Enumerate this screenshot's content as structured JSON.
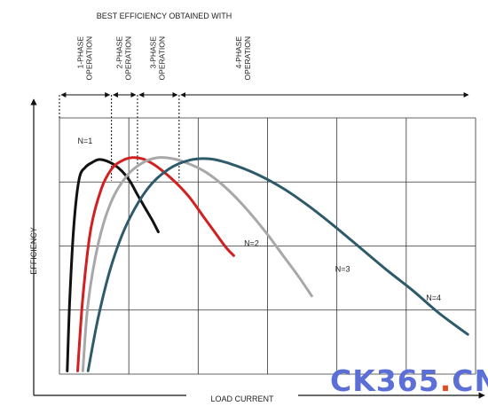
{
  "chart_data": {
    "type": "line",
    "title": "BEST EFFICIENCY OBTAINED WITH",
    "xlabel": "LOAD CURRENT",
    "ylabel": "EFFICIENCY",
    "grid": true,
    "xlim": [
      0,
      8
    ],
    "ylim": [
      0,
      4
    ],
    "regions": [
      {
        "label": "1-PHASE OPERATION",
        "x_start": 0,
        "x_end": 1.0
      },
      {
        "label": "2-PHASE OPERATION",
        "x_start": 1.0,
        "x_end": 1.5
      },
      {
        "label": "3-PHASE OPERATION",
        "x_start": 1.5,
        "x_end": 2.3
      },
      {
        "label": "4-PHASE OPERATION",
        "x_start": 2.3,
        "x_end": 8
      }
    ],
    "series": [
      {
        "name": "N=1",
        "color": "#111111",
        "x": [
          0.15,
          0.2,
          0.28,
          0.38,
          0.5,
          0.62,
          0.75,
          0.9,
          1.05,
          1.2,
          1.35,
          1.5,
          1.6,
          1.7,
          1.8,
          1.9
        ],
        "y": [
          0.05,
          1.2,
          2.35,
          3.05,
          3.23,
          3.3,
          3.35,
          3.33,
          3.27,
          3.17,
          3.02,
          2.8,
          2.66,
          2.52,
          2.38,
          2.22
        ]
      },
      {
        "name": "N=2",
        "color": "#d21f1f",
        "x": [
          0.35,
          0.45,
          0.6,
          0.8,
          1.0,
          1.2,
          1.4,
          1.6,
          1.8,
          2.0,
          2.25,
          2.5,
          2.75,
          3.0,
          3.2,
          3.35
        ],
        "y": [
          0.05,
          1.2,
          2.25,
          2.88,
          3.2,
          3.33,
          3.38,
          3.36,
          3.28,
          3.16,
          2.98,
          2.76,
          2.48,
          2.2,
          1.98,
          1.85
        ]
      },
      {
        "name": "N=3",
        "color": "#a8a8a8",
        "x": [
          0.45,
          0.55,
          0.75,
          1.0,
          1.3,
          1.6,
          1.9,
          2.2,
          2.5,
          2.8,
          3.1,
          3.4,
          3.7,
          4.0,
          4.3,
          4.6,
          4.85
        ],
        "y": [
          0.05,
          1.1,
          2.05,
          2.7,
          3.1,
          3.3,
          3.38,
          3.36,
          3.28,
          3.16,
          2.98,
          2.75,
          2.48,
          2.18,
          1.85,
          1.52,
          1.22
        ]
      },
      {
        "name": "N=4",
        "color": "#2e5a6a",
        "x": [
          0.55,
          0.75,
          1.0,
          1.3,
          1.7,
          2.1,
          2.5,
          2.9,
          3.3,
          3.8,
          4.3,
          4.8,
          5.3,
          5.8,
          6.3,
          6.8,
          7.3,
          7.85
        ],
        "y": [
          0.05,
          0.9,
          1.7,
          2.35,
          2.9,
          3.2,
          3.34,
          3.36,
          3.28,
          3.12,
          2.9,
          2.62,
          2.3,
          1.96,
          1.62,
          1.3,
          0.95,
          0.62
        ]
      }
    ],
    "annotations": [
      {
        "text": "N=1",
        "x": 0.35,
        "y": 3.6
      },
      {
        "text": "N=2",
        "x": 3.55,
        "y": 2.0
      },
      {
        "text": "N=3",
        "x": 5.3,
        "y": 1.6
      },
      {
        "text": "N=4",
        "x": 7.05,
        "y": 1.15
      }
    ]
  },
  "watermark": {
    "text_main": "CK365",
    "text_dot": ".",
    "text_tld": "CN",
    "color_main": "#5b6fd6",
    "color_dot": "#e64b1f",
    "color_tld": "#5b6fd6"
  }
}
